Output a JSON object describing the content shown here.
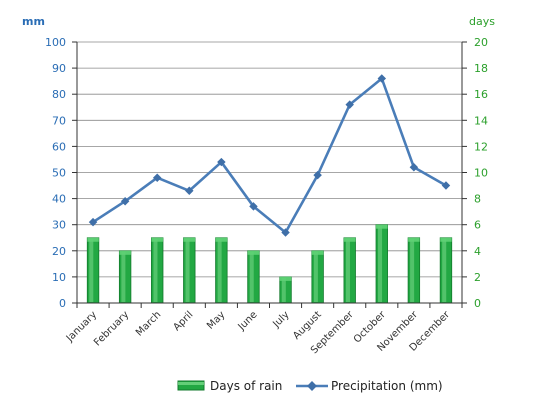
{
  "chart_data": {
    "type": "bar+line",
    "categories": [
      "January",
      "February",
      "March",
      "April",
      "May",
      "June",
      "July",
      "August",
      "September",
      "October",
      "November",
      "December"
    ],
    "left_axis": {
      "unit_label": "mm",
      "ylim": [
        0,
        100
      ],
      "ticks": [
        0,
        10,
        20,
        30,
        40,
        50,
        60,
        70,
        80,
        90,
        100
      ],
      "color": "#2a6db5"
    },
    "right_axis": {
      "unit_label": "days",
      "ylim": [
        0,
        20
      ],
      "ticks": [
        0,
        2,
        4,
        6,
        8,
        10,
        12,
        14,
        16,
        18,
        20
      ],
      "color": "#2ca02c"
    },
    "series": [
      {
        "name": "Days of rain",
        "type": "bar",
        "axis": "right",
        "color": "#22a843",
        "values": [
          5,
          4,
          5,
          5,
          5,
          4,
          2,
          4,
          5,
          6,
          5,
          5
        ]
      },
      {
        "name": "Precipitation (mm)",
        "type": "line",
        "axis": "left",
        "color": "#4a7db8",
        "values": [
          31,
          39,
          48,
          43,
          54,
          37,
          27,
          49,
          76,
          86,
          52,
          45
        ]
      }
    ],
    "grid": true,
    "legend_position": "bottom"
  }
}
